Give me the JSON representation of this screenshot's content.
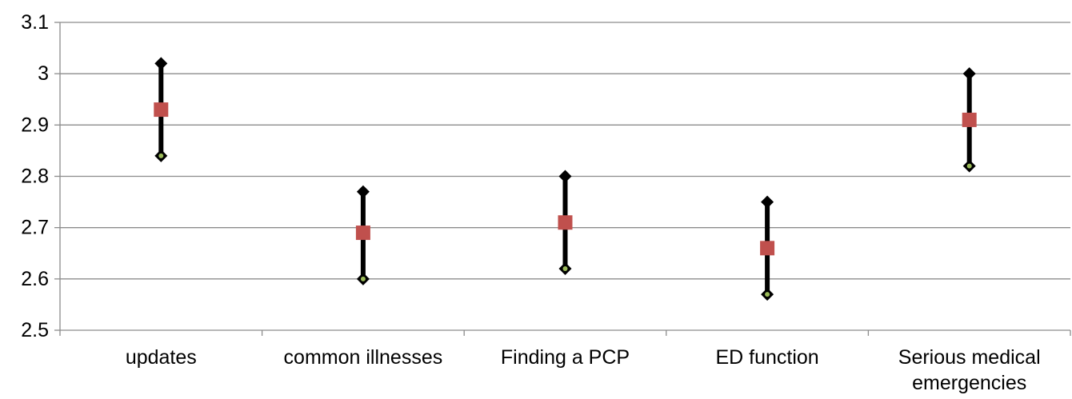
{
  "chart_data": {
    "type": "scatter",
    "title": "",
    "xlabel": "",
    "ylabel": "",
    "ylim": [
      2.5,
      3.1
    ],
    "yticks": [
      2.5,
      2.6,
      2.7,
      2.8,
      2.9,
      3.0,
      3.1
    ],
    "ytick_labels": [
      "2.5",
      "2.6",
      "2.7",
      "2.8",
      "2.9",
      "3",
      "3.1"
    ],
    "grid": true,
    "legend": "none",
    "categories": [
      [
        "updates"
      ],
      [
        "common illnesses"
      ],
      [
        "Finding a PCP"
      ],
      [
        "ED function"
      ],
      [
        "Serious medical",
        "emergencies"
      ]
    ],
    "series": [
      {
        "role": "upper",
        "marker": "diamond",
        "color": "#000000",
        "values": [
          3.02,
          2.77,
          2.8,
          2.75,
          3.0
        ]
      },
      {
        "role": "mean",
        "marker": "square",
        "color": "#c0504d",
        "values": [
          2.93,
          2.69,
          2.71,
          2.66,
          2.91
        ]
      },
      {
        "role": "lower",
        "marker": "diamond",
        "color": "#000000",
        "inner_color": "#9bbb59",
        "values": [
          2.84,
          2.6,
          2.62,
          2.57,
          2.82
        ]
      }
    ],
    "error_bar_color": "#000000"
  }
}
